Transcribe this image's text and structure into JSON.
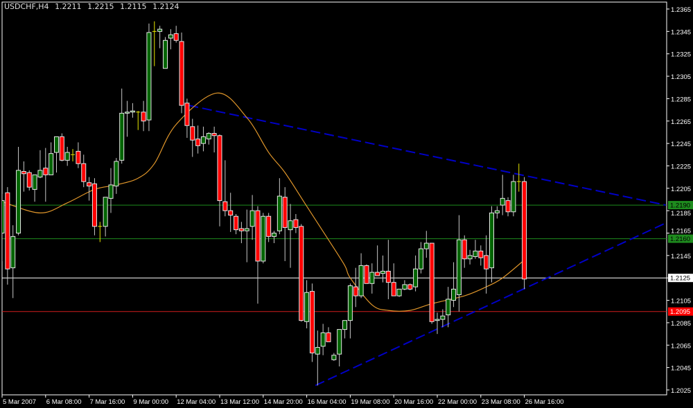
{
  "header": {
    "symbol": "USDCHF,H4",
    "open": "1.2211",
    "high": "1.2215",
    "low": "1.2115",
    "close": "1.2124"
  },
  "colors": {
    "background": "#000000",
    "frame": "#ffffff",
    "bull_body": "#006400",
    "bear_body": "#ff0000",
    "wick": "#c8c8c8",
    "doji": "#e8e800",
    "moving_average": "#e0962a",
    "trendline": "#0000c8"
  },
  "chart_data": {
    "type": "candlestick",
    "symbol": "USDCHF",
    "timeframe": "H4",
    "ylim": [
      1.2015,
      1.2375
    ],
    "y_ticks": [
      "1.2365",
      "1.2345",
      "1.2325",
      "1.2305",
      "1.2285",
      "1.2265",
      "1.2245",
      "1.2225",
      "1.2205",
      "1.2185",
      "1.2165",
      "1.2145",
      "1.2125",
      "1.2105",
      "1.2085",
      "1.2065",
      "1.2045",
      "1.2025"
    ],
    "x_ticks": [
      {
        "index": 0,
        "label": "5 Mar 2007"
      },
      {
        "index": 8,
        "label": "6 Mar 08:00"
      },
      {
        "index": 16,
        "label": "7 Mar 16:00"
      },
      {
        "index": 24,
        "label": "9 Mar 00:00"
      },
      {
        "index": 32,
        "label": "12 Mar 04:00"
      },
      {
        "index": 40,
        "label": "13 Mar 12:00"
      },
      {
        "index": 48,
        "label": "14 Mar 20:00"
      },
      {
        "index": 56,
        "label": "16 Mar 04:00"
      },
      {
        "index": 64,
        "label": "19 Mar 08:00"
      },
      {
        "index": 72,
        "label": "20 Mar 16:00"
      },
      {
        "index": 80,
        "label": "22 Mar 00:00"
      },
      {
        "index": 88,
        "label": "23 Mar 08:00"
      },
      {
        "index": 96,
        "label": "26 Mar 16:00"
      }
    ],
    "ohlc": [
      [
        1.2165,
        1.22,
        1.214,
        1.2194
      ],
      [
        1.2201,
        1.2206,
        1.2119,
        1.2133
      ],
      [
        1.2134,
        1.2172,
        1.2107,
        1.2162
      ],
      [
        1.2165,
        1.2242,
        1.2163,
        1.2221
      ],
      [
        1.222,
        1.2229,
        1.2202,
        1.2218
      ],
      [
        1.2219,
        1.2221,
        1.2203,
        1.2206
      ],
      [
        1.2204,
        1.2217,
        1.2193,
        1.2217
      ],
      [
        1.2215,
        1.2239,
        1.2214,
        1.2221
      ],
      [
        1.2223,
        1.2241,
        1.2193,
        1.2217
      ],
      [
        1.2217,
        1.2246,
        1.2217,
        1.2236
      ],
      [
        1.2237,
        1.2251,
        1.2219,
        1.2251
      ],
      [
        1.2251,
        1.2254,
        1.2229,
        1.223
      ],
      [
        1.223,
        1.2242,
        1.2225,
        1.2237
      ],
      [
        1.2235,
        1.224,
        1.2229,
        1.2235
      ],
      [
        1.2238,
        1.2246,
        1.2223,
        1.2227
      ],
      [
        1.2227,
        1.2235,
        1.2206,
        1.2211
      ],
      [
        1.221,
        1.2215,
        1.2194,
        1.2207
      ],
      [
        1.2209,
        1.2214,
        1.2163,
        1.2171
      ],
      [
        1.2171,
        1.2175,
        1.2157,
        1.2171
      ],
      [
        1.2171,
        1.2197,
        1.2162,
        1.2197
      ],
      [
        1.2196,
        1.2223,
        1.2183,
        1.2208
      ],
      [
        1.2207,
        1.2232,
        1.22,
        1.2229
      ],
      [
        1.223,
        1.2294,
        1.2227,
        1.2272
      ],
      [
        1.2272,
        1.2283,
        1.2251,
        1.2273
      ],
      [
        1.2273,
        1.2281,
        1.2268,
        1.2274
      ],
      [
        1.2273,
        1.2274,
        1.2257,
        1.2273
      ],
      [
        1.2273,
        1.2283,
        1.2256,
        1.2265
      ],
      [
        1.2266,
        1.2352,
        1.2256,
        1.2344
      ],
      [
        1.2345,
        1.2354,
        1.2314,
        1.2345
      ],
      [
        1.2345,
        1.235,
        1.233,
        1.2347
      ],
      [
        1.2312,
        1.234,
        1.2312,
        1.2337
      ],
      [
        1.2339,
        1.2347,
        1.2329,
        1.2342
      ],
      [
        1.2343,
        1.235,
        1.2335,
        1.2337
      ],
      [
        1.2336,
        1.2344,
        1.2272,
        1.2279
      ],
      [
        1.2281,
        1.2285,
        1.225,
        1.2261
      ],
      [
        1.226,
        1.2267,
        1.2233,
        1.2248
      ],
      [
        1.2249,
        1.2261,
        1.2236,
        1.2243
      ],
      [
        1.2245,
        1.226,
        1.2238,
        1.2251
      ],
      [
        1.2249,
        1.2255,
        1.2244,
        1.2254
      ],
      [
        1.2254,
        1.226,
        1.2237,
        1.2252
      ],
      [
        1.2252,
        1.2253,
        1.2171,
        1.2194
      ],
      [
        1.2193,
        1.223,
        1.218,
        1.2185
      ],
      [
        1.2185,
        1.2201,
        1.2166,
        1.2181
      ],
      [
        1.218,
        1.2182,
        1.2164,
        1.2168
      ],
      [
        1.2169,
        1.2175,
        1.2156,
        1.2167
      ],
      [
        1.2167,
        1.2186,
        1.2139,
        1.2169
      ],
      [
        1.2171,
        1.2199,
        1.2159,
        1.2185
      ],
      [
        1.2185,
        1.2189,
        1.2102,
        1.214
      ],
      [
        1.214,
        1.2183,
        1.2138,
        1.218
      ],
      [
        1.218,
        1.2183,
        1.2157,
        1.2162
      ],
      [
        1.2162,
        1.2167,
        1.2156,
        1.2165
      ],
      [
        1.2167,
        1.2214,
        1.2164,
        1.2198
      ],
      [
        1.2197,
        1.2206,
        1.214,
        1.217
      ],
      [
        1.2168,
        1.2191,
        1.2134,
        1.2176
      ],
      [
        1.2177,
        1.2182,
        1.2165,
        1.217
      ],
      [
        1.2171,
        1.2173,
        1.2086,
        1.2087
      ],
      [
        1.2086,
        1.2123,
        1.208,
        1.2112
      ],
      [
        1.2113,
        1.212,
        1.205,
        1.2058
      ],
      [
        1.2057,
        1.2078,
        1.2029,
        1.2063
      ],
      [
        1.2064,
        1.2084,
        1.2056,
        1.2076
      ],
      [
        1.2076,
        1.2081,
        1.2068,
        1.2068
      ],
      [
        1.2052,
        1.2058,
        1.2051,
        1.2056
      ],
      [
        1.2057,
        1.2079,
        1.2046,
        1.2079
      ],
      [
        1.2079,
        1.2087,
        1.2071,
        1.2087
      ],
      [
        1.2087,
        1.212,
        1.2071,
        1.2118
      ],
      [
        1.2117,
        1.2134,
        1.2099,
        1.2109
      ],
      [
        1.2109,
        1.2147,
        1.2107,
        1.2136
      ],
      [
        1.2136,
        1.2137,
        1.212,
        1.212
      ],
      [
        1.212,
        1.2138,
        1.2111,
        1.213
      ],
      [
        1.213,
        1.2154,
        1.2127,
        1.2127
      ],
      [
        1.2129,
        1.2145,
        1.2121,
        1.2131
      ],
      [
        1.2131,
        1.2159,
        1.2106,
        1.2121
      ],
      [
        1.2121,
        1.2138,
        1.2109,
        1.2109
      ],
      [
        1.2109,
        1.2115,
        1.2108,
        1.2115
      ],
      [
        1.2115,
        1.2123,
        1.2114,
        1.2119
      ],
      [
        1.2119,
        1.212,
        1.2114,
        1.2115
      ],
      [
        1.2117,
        1.2145,
        1.2113,
        1.2133
      ],
      [
        1.2133,
        1.2157,
        1.2129,
        1.2151
      ],
      [
        1.2151,
        1.2167,
        1.2143,
        1.2156
      ],
      [
        1.2156,
        1.2156,
        1.2084,
        1.2086
      ],
      [
        1.2087,
        1.2094,
        1.2075,
        1.2088
      ],
      [
        1.2088,
        1.2097,
        1.2081,
        1.2091
      ],
      [
        1.2092,
        1.2117,
        1.2081,
        1.2106
      ],
      [
        1.2105,
        1.2139,
        1.2099,
        1.2115
      ],
      [
        1.211,
        1.2181,
        1.2095,
        1.2159
      ],
      [
        1.2159,
        1.2163,
        1.2134,
        1.2142
      ],
      [
        1.2142,
        1.215,
        1.2137,
        1.2145
      ],
      [
        1.2144,
        1.2159,
        1.2142,
        1.2149
      ],
      [
        1.2149,
        1.2154,
        1.2136,
        1.2143
      ],
      [
        1.2145,
        1.2163,
        1.2111,
        1.2133
      ],
      [
        1.2134,
        1.2189,
        1.2121,
        1.2183
      ],
      [
        1.2183,
        1.2189,
        1.2178,
        1.2185
      ],
      [
        1.219,
        1.2217,
        1.2181,
        1.2196
      ],
      [
        1.2194,
        1.2197,
        1.218,
        1.2184
      ],
      [
        1.2184,
        1.2217,
        1.218,
        1.2211
      ],
      [
        1.2211,
        1.2227,
        1.2202,
        1.2211
      ],
      [
        1.2211,
        1.2215,
        1.2115,
        1.2124
      ]
    ],
    "moving_average": [
      [
        0,
        1.2193
      ],
      [
        7,
        1.2183
      ],
      [
        12,
        1.2192
      ],
      [
        17,
        1.2204
      ],
      [
        21,
        1.2208
      ],
      [
        25,
        1.2214
      ],
      [
        28,
        1.2227
      ],
      [
        32,
        1.2262
      ],
      [
        39.5,
        1.229
      ],
      [
        45,
        1.2268
      ],
      [
        49,
        1.2237
      ],
      [
        52,
        1.2219
      ],
      [
        56,
        1.2189
      ],
      [
        60,
        1.2159
      ],
      [
        63,
        1.2136
      ],
      [
        64,
        1.2125
      ],
      [
        68,
        1.2101
      ],
      [
        71,
        1.2096
      ],
      [
        75,
        1.2096
      ],
      [
        79,
        1.2102
      ],
      [
        85,
        1.2109
      ],
      [
        89,
        1.2117
      ],
      [
        92,
        1.2125
      ],
      [
        96,
        1.2141
      ]
    ],
    "horizontal_lines": [
      {
        "price": "1.2190",
        "color": "#1e8c1e",
        "label_bg": "#1e8c1e",
        "label_fg": "#000000"
      },
      {
        "price": "1.2160",
        "color": "#1e8c1e",
        "label_bg": "#1e8c1e",
        "label_fg": "#000000"
      },
      {
        "price": "1.2125",
        "color": "#ffffff",
        "label_bg": "#ffffff",
        "label_fg": "#000000"
      },
      {
        "price": "1.2095",
        "color": "#d21e1e",
        "label_bg": "#ff0000",
        "label_fg": "#ffffff"
      }
    ],
    "trendlines": [
      {
        "from": [
          34.3,
          1.2279
        ],
        "to": [
          122,
          1.219
        ]
      },
      {
        "from": [
          57.6,
          1.2029
        ],
        "to": [
          122,
          1.2174
        ]
      }
    ]
  }
}
